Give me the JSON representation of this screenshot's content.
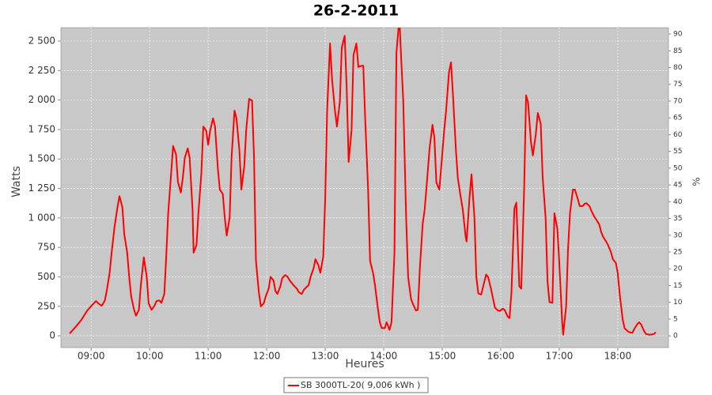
{
  "chart_data": {
    "type": "line",
    "title": "26-2-2011",
    "x_label": "Heures",
    "y_label": "Watts",
    "y2_label": "%",
    "xlim": [
      "08:29",
      "18:52"
    ],
    "xticks": [
      "09:00",
      "10:00",
      "11:00",
      "12:00",
      "13:00",
      "14:00",
      "15:00",
      "16:00",
      "17:00",
      "18:00"
    ],
    "ylim": [
      -100,
      2614
    ],
    "yticks": [
      0,
      250,
      500,
      750,
      {
        "value": 1000,
        "label": "1 000"
      },
      {
        "value": 1250,
        "label": "1 250"
      },
      {
        "value": 1500,
        "label": "1 500"
      },
      {
        "value": 1750,
        "label": "1 750"
      },
      {
        "value": 2000,
        "label": "2 000"
      },
      {
        "value": 2250,
        "label": "2 250"
      },
      {
        "value": 2500,
        "label": "2 500"
      }
    ],
    "y2lim": [
      -3.5,
      91.9
    ],
    "y2ticks": [
      0,
      5,
      10,
      15,
      20,
      25,
      30,
      35,
      40,
      45,
      50,
      55,
      60,
      65,
      70,
      75,
      80,
      85,
      90
    ],
    "grid": true,
    "legend": "bottom",
    "x": [
      "08:38",
      "08:44",
      "08:50",
      "08:56",
      "09:02",
      "09:05",
      "09:08",
      "09:11",
      "09:14",
      "09:16",
      "09:19",
      "09:21",
      "09:24",
      "09:27",
      "09:29",
      "09:32",
      "09:34",
      "09:37",
      "09:39",
      "09:41",
      "09:44",
      "09:46",
      "09:49",
      "09:51",
      "09:54",
      "09:57",
      "09:59",
      "10:02",
      "10:05",
      "10:07",
      "10:10",
      "10:12",
      "10:15",
      "10:17",
      "10:19",
      "10:22",
      "10:24",
      "10:27",
      "10:29",
      "10:32",
      "10:34",
      "10:36",
      "10:39",
      "10:41",
      "10:44",
      "10:45",
      "10:48",
      "10:50",
      "10:53",
      "10:55",
      "10:58",
      "11:00",
      "11:02",
      "11:05",
      "11:07",
      "11:10",
      "11:12",
      "11:15",
      "11:17",
      "11:19",
      "11:22",
      "11:24",
      "11:27",
      "11:29",
      "11:32",
      "11:34",
      "11:37",
      "11:39",
      "11:42",
      "11:45",
      "11:47",
      "11:49",
      "11:52",
      "11:54",
      "11:57",
      "11:59",
      "12:02",
      "12:04",
      "12:07",
      "12:09",
      "12:11",
      "12:14",
      "12:16",
      "12:19",
      "12:21",
      "12:24",
      "12:26",
      "12:28",
      "12:31",
      "12:33",
      "12:36",
      "12:38",
      "12:41",
      "12:43",
      "12:45",
      "12:48",
      "12:50",
      "12:53",
      "12:55",
      "12:58",
      "13:00",
      "13:02",
      "13:05",
      "13:07",
      "13:10",
      "13:12",
      "13:15",
      "13:17",
      "13:20",
      "13:22",
      "13:24",
      "13:27",
      "13:29",
      "13:32",
      "13:34",
      "13:37",
      "13:39",
      "13:41",
      "13:44",
      "13:46",
      "13:49",
      "13:51",
      "13:54",
      "13:56",
      "13:58",
      "14:01",
      "14:03",
      "14:06",
      "14:08",
      "14:11",
      "14:13",
      "14:16",
      "14:18",
      "14:20",
      "14:23",
      "14:25",
      "14:28",
      "14:30",
      "14:33",
      "14:35",
      "14:37",
      "14:40",
      "14:42",
      "14:45",
      "14:47",
      "14:50",
      "14:52",
      "14:54",
      "14:57",
      "14:59",
      "15:02",
      "15:04",
      "15:07",
      "15:09",
      "15:11",
      "15:14",
      "15:16",
      "15:19",
      "15:21",
      "15:24",
      "15:25",
      "15:28",
      "15:30",
      "15:33",
      "15:35",
      "15:37",
      "15:40",
      "15:42",
      "15:45",
      "15:47",
      "15:50",
      "15:52",
      "15:54",
      "15:57",
      "15:59",
      "16:02",
      "16:04",
      "16:07",
      "16:09",
      "16:11",
      "16:14",
      "16:16",
      "16:19",
      "16:21",
      "16:24",
      "16:26",
      "16:28",
      "16:31",
      "16:33",
      "16:36",
      "16:38",
      "16:41",
      "16:43",
      "16:46",
      "16:48",
      "16:50",
      "16:53",
      "16:55",
      "16:58",
      "17:00",
      "17:03",
      "17:04",
      "17:07",
      "17:09",
      "17:11",
      "17:14",
      "17:16",
      "17:19",
      "17:21",
      "17:24",
      "17:26",
      "17:28",
      "17:31",
      "17:33",
      "17:36",
      "17:38",
      "17:41",
      "17:43",
      "17:45",
      "17:48",
      "17:50",
      "17:53",
      "17:55",
      "17:58",
      "18:00",
      "18:02",
      "18:05",
      "18:07",
      "18:10",
      "18:12",
      "18:15",
      "18:17",
      "18:20",
      "18:22",
      "18:24",
      "18:27",
      "18:29",
      "18:32",
      "18:34",
      "18:37",
      "18:39"
    ],
    "series": [
      {
        "name": "SB 3000TL-20( 9,006 kWh )",
        "color": "#ff0000",
        "values": [
          20,
          75,
          135,
          215,
          270,
          295,
          270,
          255,
          300,
          380,
          535,
          705,
          925,
          1090,
          1185,
          1090,
          860,
          705,
          500,
          335,
          220,
          170,
          220,
          435,
          665,
          500,
          275,
          220,
          255,
          295,
          300,
          280,
          355,
          670,
          1040,
          1375,
          1610,
          1540,
          1305,
          1215,
          1340,
          1510,
          1590,
          1510,
          1070,
          705,
          770,
          1040,
          1375,
          1775,
          1740,
          1620,
          1740,
          1845,
          1775,
          1410,
          1240,
          1205,
          1005,
          850,
          1005,
          1510,
          1910,
          1845,
          1575,
          1240,
          1440,
          1745,
          2010,
          1995,
          1510,
          640,
          370,
          250,
          275,
          335,
          400,
          500,
          470,
          380,
          355,
          420,
          490,
          515,
          505,
          465,
          445,
          425,
          400,
          370,
          355,
          390,
          415,
          430,
          500,
          570,
          650,
          600,
          535,
          670,
          1170,
          1910,
          2480,
          2180,
          1910,
          1775,
          1985,
          2445,
          2545,
          2110,
          1475,
          1745,
          2380,
          2480,
          2280,
          2290,
          2290,
          1845,
          1240,
          635,
          535,
          435,
          235,
          115,
          65,
          65,
          115,
          50,
          115,
          700,
          2400,
          2700,
          2340,
          2000,
          1000,
          500,
          310,
          270,
          215,
          220,
          570,
          950,
          1070,
          1375,
          1590,
          1790,
          1680,
          1300,
          1240,
          1440,
          1745,
          1910,
          2240,
          2320,
          2040,
          1575,
          1340,
          1175,
          1075,
          840,
          800,
          1175,
          1370,
          1005,
          500,
          360,
          350,
          420,
          520,
          500,
          400,
          320,
          240,
          215,
          210,
          230,
          220,
          165,
          150,
          370,
          1080,
          1130,
          420,
          400,
          1260,
          2040,
          1980,
          1640,
          1530,
          1710,
          1890,
          1800,
          1340,
          1000,
          460,
          285,
          280,
          1040,
          910,
          630,
          120,
          10,
          250,
          730,
          1040,
          1240,
          1240,
          1160,
          1100,
          1100,
          1120,
          1125,
          1100,
          1060,
          1010,
          985,
          945,
          880,
          840,
          800,
          770,
          710,
          650,
          620,
          530,
          350,
          140,
          65,
          40,
          30,
          25,
          60,
          100,
          115,
          95,
          40,
          15,
          10,
          10,
          15,
          30
        ]
      }
    ]
  }
}
